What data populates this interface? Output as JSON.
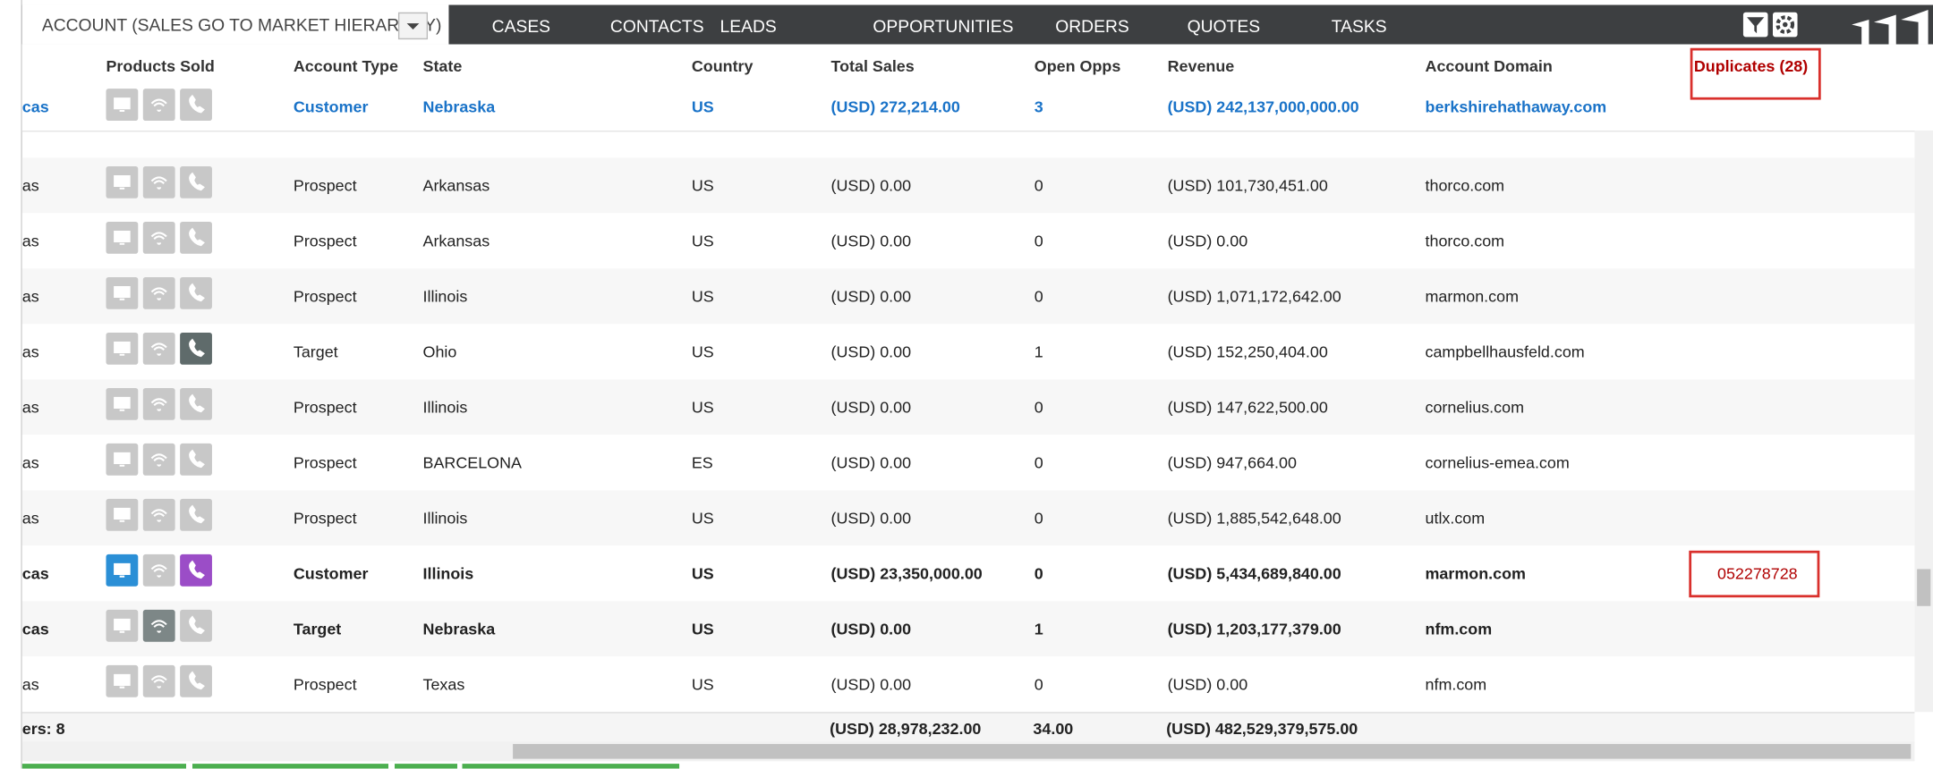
{
  "nav": {
    "active_tab": "ACCOUNT (SALES GO TO MARKET HIERARCHY)",
    "tabs": [
      "CASES",
      "CONTACTS",
      "LEADS",
      "OPPORTUNITIES",
      "ORDERS",
      "QUOTES",
      "TASKS"
    ]
  },
  "table": {
    "columns": [
      "Products Sold",
      "Account Type",
      "State",
      "Country",
      "Total Sales",
      "Open Opps",
      "Revenue",
      "Account Domain",
      "Duplicates (28)"
    ],
    "pinned_row": {
      "name": "cas",
      "account_type": "Customer",
      "state": "Nebraska",
      "country": "US",
      "total_sales": "(USD) 272,214.00",
      "open_opps": "3",
      "revenue": "(USD) 242,137,000,000.00",
      "account_domain": "berkshirehathaway.com"
    },
    "rows": [
      {
        "name": "as",
        "icons": [
          "#c8c8c8",
          "#c8c8c8",
          "#c8c8c8"
        ],
        "bold": false,
        "account_type": "Prospect",
        "state": "Arkansas",
        "country": "US",
        "total_sales": "(USD) 0.00",
        "open_opps": "0",
        "revenue": "(USD) 101,730,451.00",
        "account_domain": "thorco.com"
      },
      {
        "name": "as",
        "icons": [
          "#c8c8c8",
          "#c8c8c8",
          "#c8c8c8"
        ],
        "bold": false,
        "account_type": "Prospect",
        "state": "Arkansas",
        "country": "US",
        "total_sales": "(USD) 0.00",
        "open_opps": "0",
        "revenue": "(USD) 0.00",
        "account_domain": "thorco.com"
      },
      {
        "name": "as",
        "icons": [
          "#c8c8c8",
          "#c8c8c8",
          "#c8c8c8"
        ],
        "bold": false,
        "account_type": "Prospect",
        "state": "Illinois",
        "country": "US",
        "total_sales": "(USD) 0.00",
        "open_opps": "0",
        "revenue": "(USD) 1,071,172,642.00",
        "account_domain": "marmon.com"
      },
      {
        "name": "as",
        "icons": [
          "#c8c8c8",
          "#c8c8c8",
          "#5f6b6b"
        ],
        "bold": false,
        "account_type": "Target",
        "state": "Ohio",
        "country": "US",
        "total_sales": "(USD) 0.00",
        "open_opps": "1",
        "revenue": "(USD) 152,250,404.00",
        "account_domain": "campbellhausfeld.com"
      },
      {
        "name": "as",
        "icons": [
          "#c8c8c8",
          "#c8c8c8",
          "#c8c8c8"
        ],
        "bold": false,
        "account_type": "Prospect",
        "state": "Illinois",
        "country": "US",
        "total_sales": "(USD) 0.00",
        "open_opps": "0",
        "revenue": "(USD) 147,622,500.00",
        "account_domain": "cornelius.com"
      },
      {
        "name": "as",
        "icons": [
          "#c8c8c8",
          "#c8c8c8",
          "#c8c8c8"
        ],
        "bold": false,
        "account_type": "Prospect",
        "state": "BARCELONA",
        "country": "ES",
        "total_sales": "(USD) 0.00",
        "open_opps": "0",
        "revenue": "(USD) 947,664.00",
        "account_domain": "cornelius-emea.com"
      },
      {
        "name": "as",
        "icons": [
          "#c8c8c8",
          "#c8c8c8",
          "#c8c8c8"
        ],
        "bold": false,
        "account_type": "Prospect",
        "state": "Illinois",
        "country": "US",
        "total_sales": "(USD) 0.00",
        "open_opps": "0",
        "revenue": "(USD) 1,885,542,648.00",
        "account_domain": "utlx.com"
      },
      {
        "name": "cas",
        "icons": [
          "#2b8fd6",
          "#c8c8c8",
          "#9b4dc7"
        ],
        "bold": true,
        "account_type": "Customer",
        "state": "Illinois",
        "country": "US",
        "total_sales": "(USD) 23,350,000.00",
        "open_opps": "0",
        "revenue": "(USD) 5,434,689,840.00",
        "account_domain": "marmon.com",
        "duplicate": "052278728"
      },
      {
        "name": "cas",
        "icons": [
          "#c8c8c8",
          "#7d8787",
          "#c8c8c8"
        ],
        "bold": true,
        "account_type": "Target",
        "state": "Nebraska",
        "country": "US",
        "total_sales": "(USD) 0.00",
        "open_opps": "1",
        "revenue": "(USD) 1,203,177,379.00",
        "account_domain": "nfm.com"
      },
      {
        "name": "as",
        "icons": [
          "#c8c8c8",
          "#c8c8c8",
          "#c8c8c8"
        ],
        "bold": false,
        "account_type": "Prospect",
        "state": "Texas",
        "country": "US",
        "total_sales": "(USD) 0.00",
        "open_opps": "0",
        "revenue": "(USD) 0.00",
        "account_domain": "nfm.com"
      }
    ],
    "footer": {
      "label": "ers: 8",
      "total_sales": "(USD) 28,978,232.00",
      "open_opps": "34.00",
      "revenue": "(USD) 482,529,379,575.00"
    }
  }
}
